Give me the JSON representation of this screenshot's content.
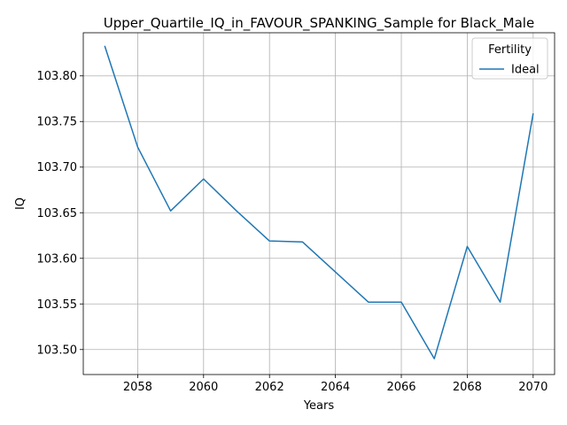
{
  "chart_data": {
    "type": "line",
    "title": "Upper_Quartile_IQ_in_FAVOUR_SPANKING_Sample for Black_Male",
    "xlabel": "Years",
    "ylabel": "IQ",
    "x": [
      2057,
      2058,
      2059,
      2060,
      2061,
      2062,
      2063,
      2064,
      2065,
      2066,
      2067,
      2068,
      2069,
      2070
    ],
    "series": [
      {
        "name": "Ideal",
        "color": "#1f77b4",
        "values": [
          103.833,
          103.722,
          103.652,
          103.687,
          103.652,
          103.619,
          103.618,
          103.585,
          103.552,
          103.552,
          103.49,
          103.613,
          103.552,
          103.759
        ]
      }
    ],
    "xlim": [
      2056.35,
      2070.65
    ],
    "ylim": [
      103.4726,
      103.8473
    ],
    "xticks": [
      2058,
      2060,
      2062,
      2064,
      2066,
      2068,
      2070
    ],
    "yticks": [
      103.5,
      103.55,
      103.6,
      103.65,
      103.7,
      103.75,
      103.8
    ],
    "ytick_labels": [
      "103.50",
      "103.55",
      "103.60",
      "103.65",
      "103.70",
      "103.75",
      "103.80"
    ],
    "grid": true,
    "legend": {
      "title": "Fertility",
      "position": "top-right"
    }
  }
}
